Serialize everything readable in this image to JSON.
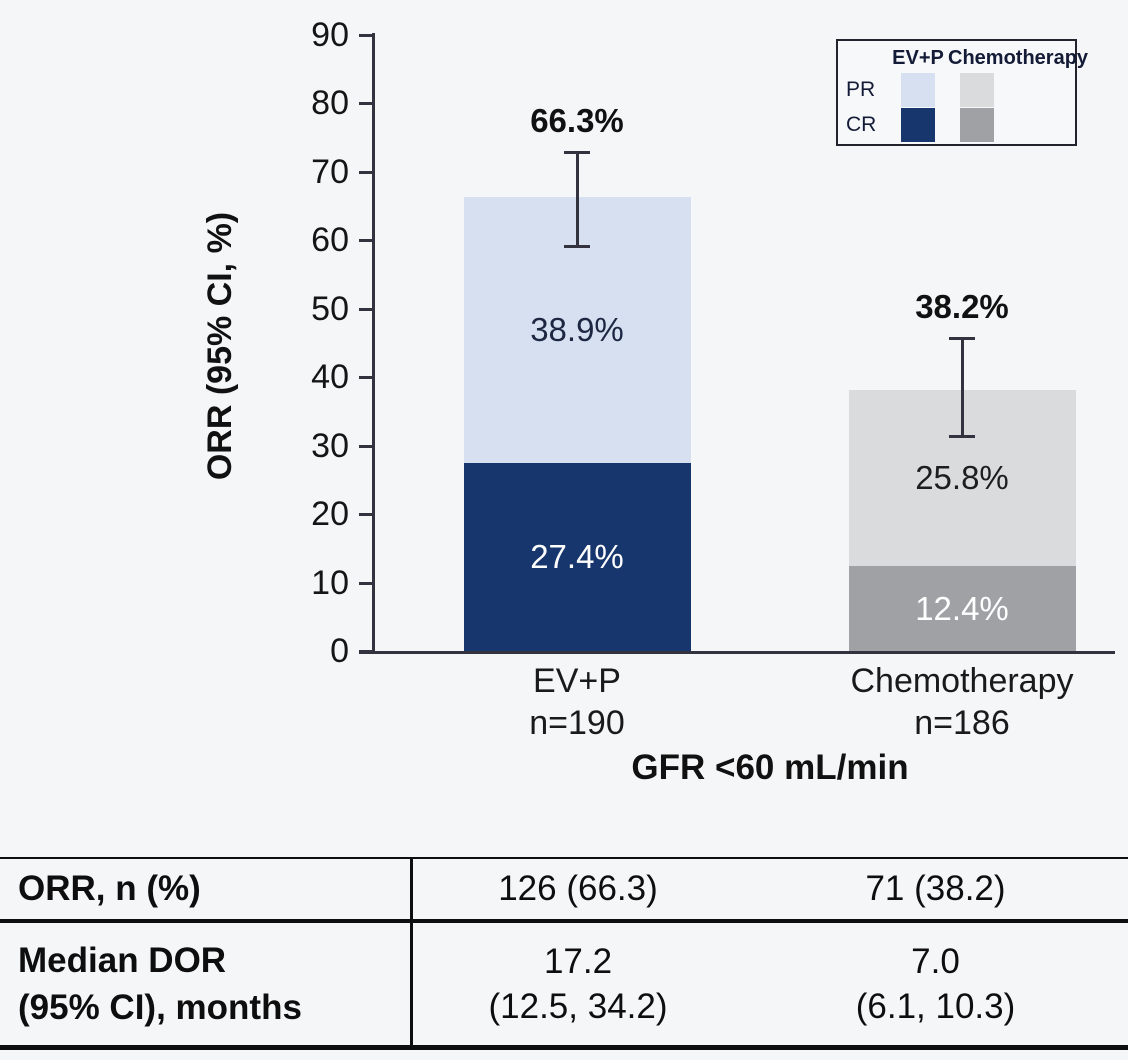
{
  "chart_data": {
    "type": "stacked_bar",
    "title": "",
    "ylabel": "ORR (95% CI, %)",
    "xlabel": "GFR <60 mL/min",
    "ylim": [
      0,
      90
    ],
    "yticks": [
      0,
      10,
      20,
      30,
      40,
      50,
      60,
      70,
      80,
      90
    ],
    "grid": false,
    "legend_position": "top-right",
    "axis_color": "#33333f",
    "groups": [
      {
        "label": "EV+P",
        "n_label": "n=190",
        "total": 66.3,
        "total_label": "66.3%",
        "ci": [
          59.0,
          72.9
        ],
        "segments": [
          {
            "name": "CR",
            "value": 27.4,
            "label": "27.4%",
            "color": "#17366d",
            "text_color": "#ffffff"
          },
          {
            "name": "PR",
            "value": 38.9,
            "label": "38.9%",
            "color": "#d6e0f1",
            "text_color": "#1d2742"
          }
        ]
      },
      {
        "label": "Chemotherapy",
        "n_label": "n=186",
        "total": 38.2,
        "total_label": "38.2%",
        "ci": [
          31.2,
          45.7
        ],
        "segments": [
          {
            "name": "CR",
            "value": 12.4,
            "label": "12.4%",
            "color": "#9fa1a5",
            "text_color": "#ffffff"
          },
          {
            "name": "PR",
            "value": 25.8,
            "label": "25.8%",
            "color": "#dadbdd",
            "text_color": "#1e1e1e"
          }
        ]
      }
    ],
    "legend": {
      "col_headers": [
        "EV+P",
        "Chemotherapy"
      ],
      "rows": [
        {
          "label": "PR",
          "colors": [
            "#d6e0f1",
            "#dadbdd"
          ]
        },
        {
          "label": "CR",
          "colors": [
            "#17366d",
            "#9fa1a5"
          ]
        }
      ]
    }
  },
  "table": {
    "rows": [
      {
        "label": "ORR, n (%)",
        "values": [
          "126 (66.3)",
          "71 (38.2)"
        ]
      },
      {
        "label": "Median DOR\n(95% CI), months",
        "values": [
          "17.2\n(12.5, 34.2)",
          "7.0\n(6.1, 10.3)"
        ]
      }
    ]
  }
}
